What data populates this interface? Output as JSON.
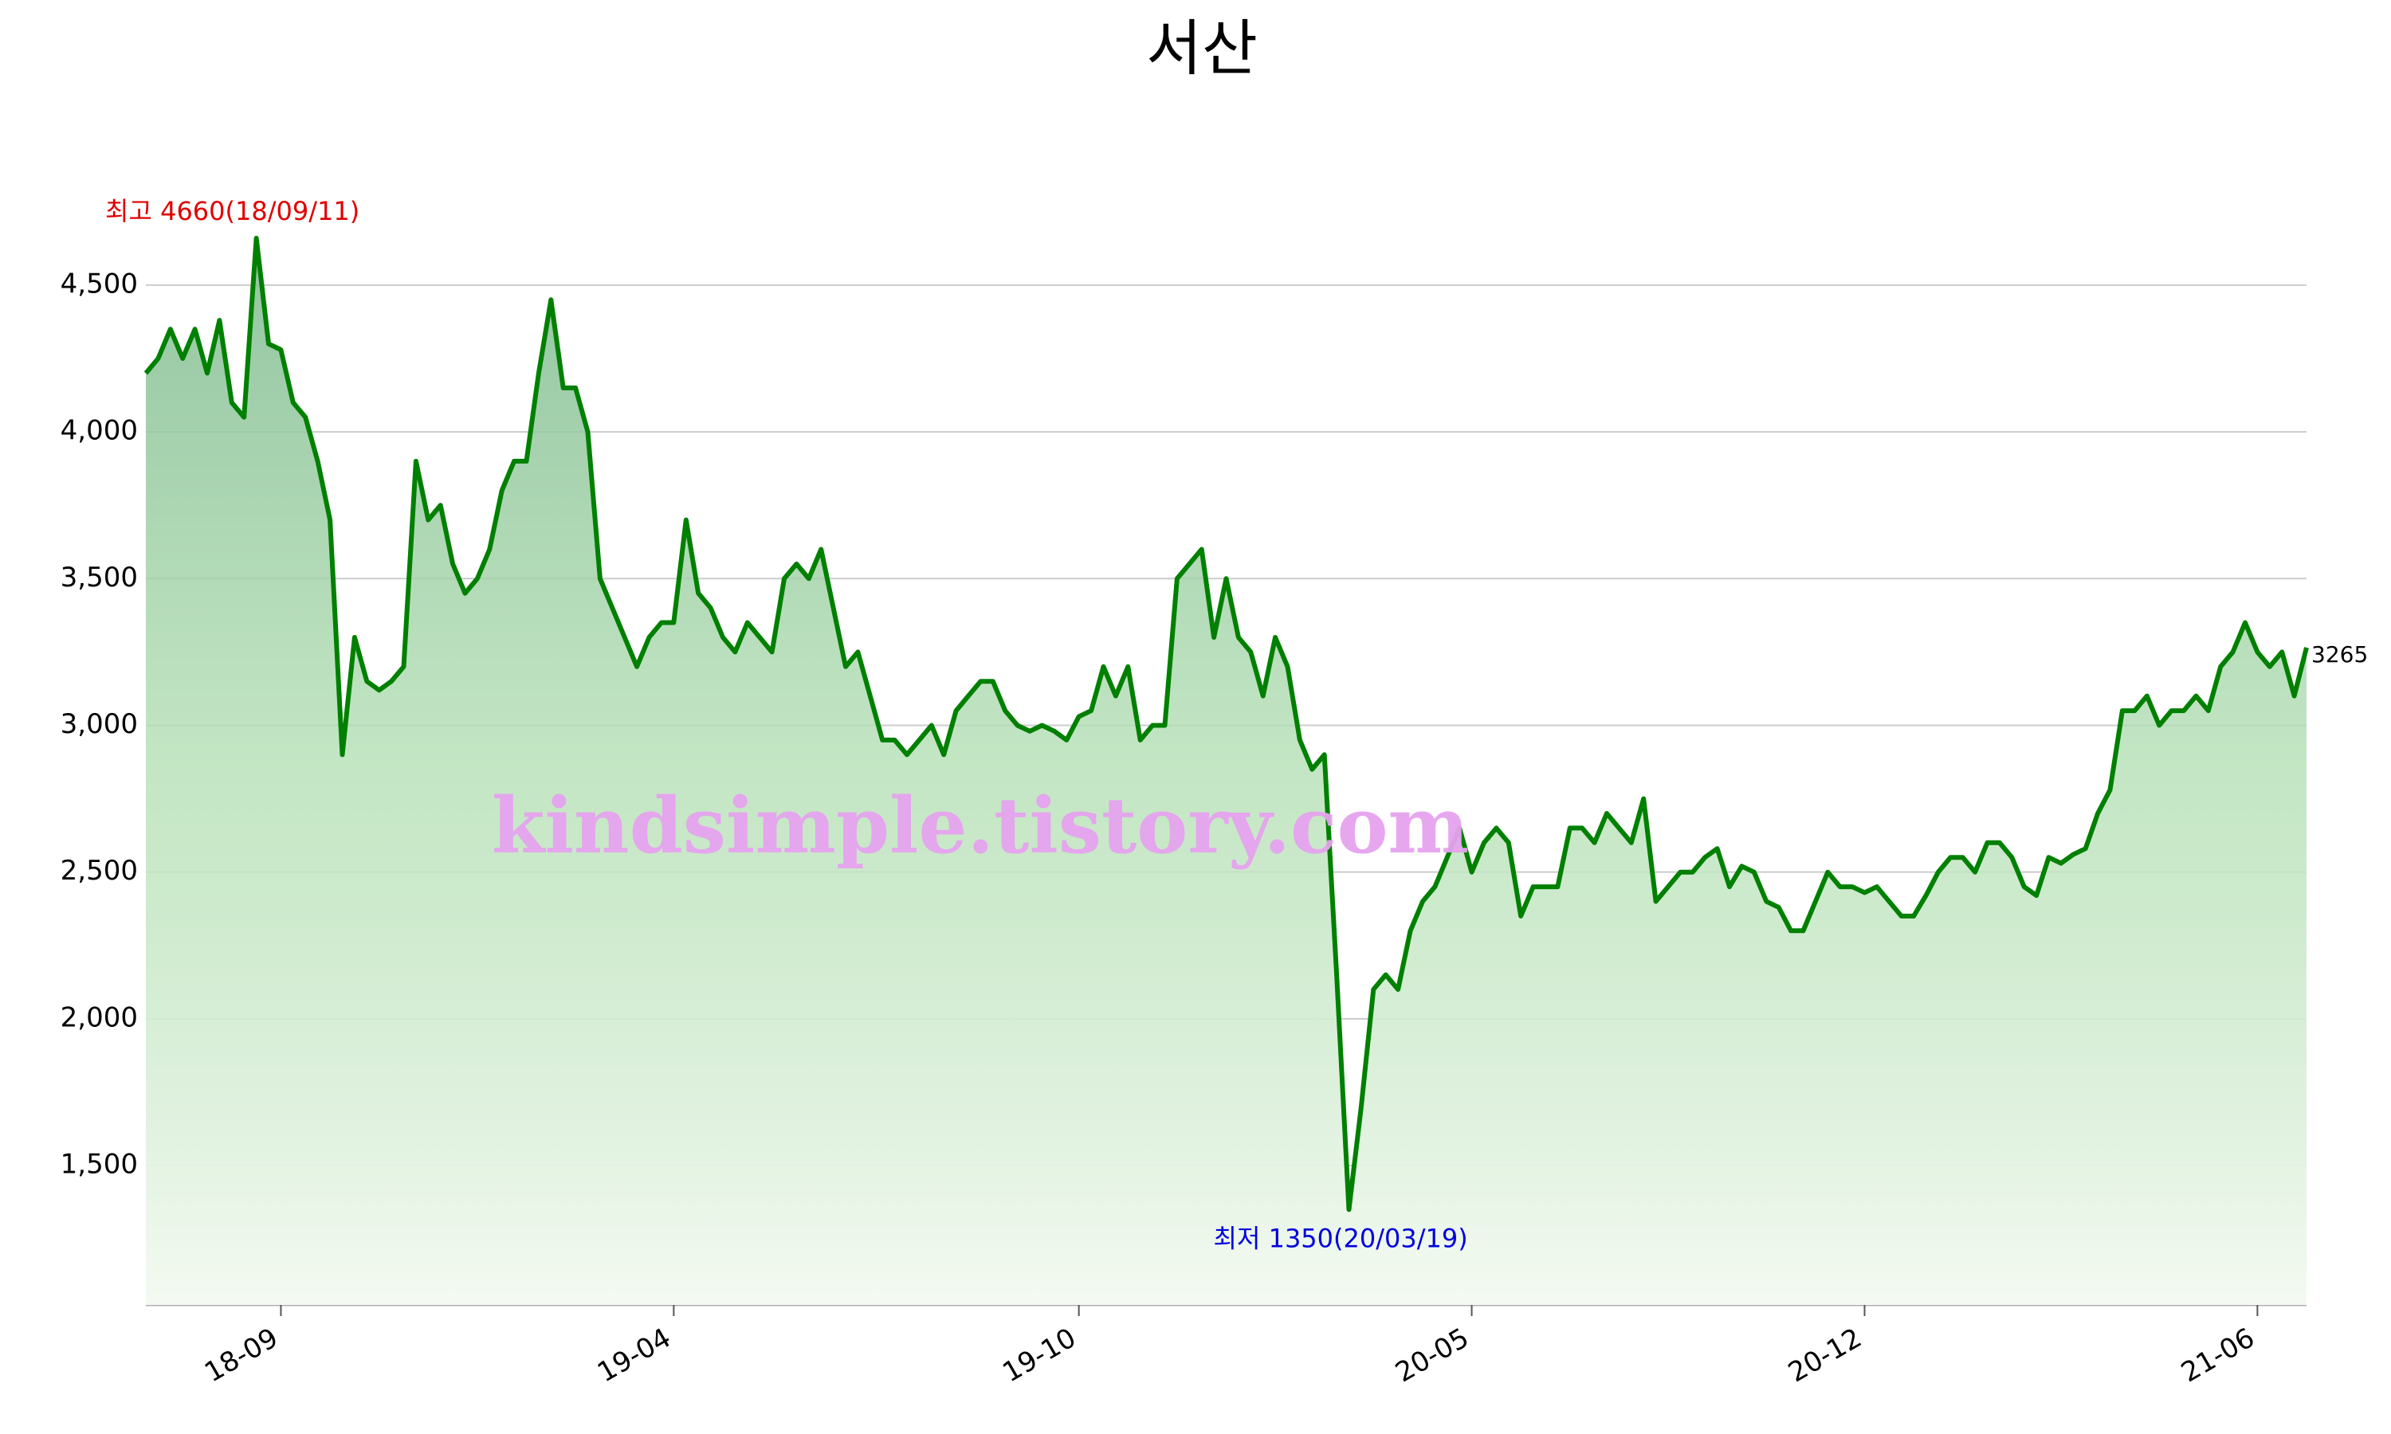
{
  "chart_data": {
    "type": "line",
    "title": "서산",
    "watermark": "kindsimple.tistory.com",
    "annotations": [
      {
        "text": "최고 4660(18/09/11)",
        "color": "#e00000"
      },
      {
        "text": "최저 1350(20/03/19)",
        "color": "#0000dd"
      }
    ],
    "categories": [
      null,
      null,
      null,
      null,
      null,
      null,
      null,
      null,
      null,
      null,
      null,
      "18-09",
      null,
      null,
      null,
      null,
      null,
      null,
      null,
      null,
      null,
      null,
      null,
      null,
      null,
      null,
      null,
      null,
      null,
      null,
      null,
      null,
      null,
      null,
      null,
      null,
      null,
      null,
      null,
      null,
      null,
      null,
      null,
      "19-04",
      null,
      null,
      null,
      null,
      null,
      null,
      null,
      null,
      null,
      null,
      null,
      null,
      null,
      null,
      null,
      null,
      null,
      null,
      null,
      null,
      null,
      null,
      null,
      null,
      null,
      null,
      null,
      null,
      null,
      null,
      null,
      null,
      "19-10",
      null,
      null,
      null,
      null,
      null,
      null,
      null,
      null,
      null,
      null,
      null,
      null,
      null,
      null,
      null,
      null,
      null,
      null,
      null,
      null,
      null,
      null,
      null,
      null,
      null,
      null,
      null,
      null,
      null,
      null,
      null,
      "20-05",
      null,
      null,
      null,
      null,
      null,
      null,
      null,
      null,
      null,
      null,
      null,
      null,
      null,
      null,
      null,
      null,
      null,
      null,
      null,
      null,
      null,
      null,
      null,
      null,
      null,
      null,
      null,
      null,
      null,
      null,
      null,
      "20-12",
      null,
      null,
      null,
      null,
      null,
      null,
      null,
      null,
      null,
      null,
      null,
      null,
      null,
      null,
      null,
      null,
      null,
      null,
      null,
      null,
      null,
      null,
      null,
      null,
      null,
      null,
      null,
      null,
      null,
      null,
      null,
      "21-06",
      null,
      null,
      null,
      null
    ],
    "series": [
      {
        "color": "#008000",
        "values": [
          4200,
          4250,
          4350,
          4250,
          4350,
          4200,
          4380,
          4100,
          4050,
          4660,
          4300,
          4280,
          4100,
          4050,
          3900,
          3700,
          2900,
          3300,
          3150,
          3120,
          3150,
          3200,
          3900,
          3700,
          3750,
          3550,
          3450,
          3500,
          3600,
          3800,
          3900,
          3900,
          4200,
          4450,
          4150,
          4150,
          4000,
          3500,
          3400,
          3300,
          3200,
          3300,
          3350,
          3350,
          3700,
          3450,
          3400,
          3300,
          3250,
          3350,
          3300,
          3250,
          3500,
          3550,
          3500,
          3600,
          3400,
          3200,
          3250,
          3100,
          2950,
          2950,
          2900,
          2950,
          3000,
          2900,
          3050,
          3100,
          3150,
          3150,
          3050,
          3000,
          2980,
          3000,
          2980,
          2950,
          3030,
          3050,
          3200,
          3100,
          3200,
          2950,
          3000,
          3000,
          3500,
          3550,
          3600,
          3300,
          3500,
          3300,
          3250,
          3100,
          3300,
          3200,
          2950,
          2850,
          2900,
          2150,
          1350,
          1700,
          2100,
          2150,
          2100,
          2300,
          2400,
          2450,
          2550,
          2650,
          2500,
          2600,
          2650,
          2600,
          2350,
          2450,
          2450,
          2450,
          2650,
          2650,
          2600,
          2700,
          2650,
          2600,
          2750,
          2400,
          2450,
          2500,
          2500,
          2550,
          2580,
          2450,
          2520,
          2500,
          2400,
          2380,
          2300,
          2300,
          2400,
          2500,
          2450,
          2450,
          2430,
          2450,
          2400,
          2350,
          2350,
          2420,
          2500,
          2550,
          2550,
          2500,
          2600,
          2600,
          2550,
          2450,
          2420,
          2550,
          2530,
          2560,
          2580,
          2700,
          2780,
          3050,
          3050,
          3100,
          3000,
          3050,
          3050,
          3100,
          3050,
          3200,
          3250,
          3350,
          3250,
          3200,
          3250,
          3100,
          3265
        ]
      }
    ],
    "ylim": [
      1025,
      4850
    ],
    "yticks": [
      {
        "value": 1500,
        "label": "1,500"
      },
      {
        "value": 2000,
        "label": "2,000"
      },
      {
        "value": 2500,
        "label": "2,500"
      },
      {
        "value": 3000,
        "label": "3,000"
      },
      {
        "value": 3500,
        "label": "3,500"
      },
      {
        "value": 4000,
        "label": "4,000"
      },
      {
        "value": 4500,
        "label": "4,500"
      }
    ],
    "grid": true
  }
}
